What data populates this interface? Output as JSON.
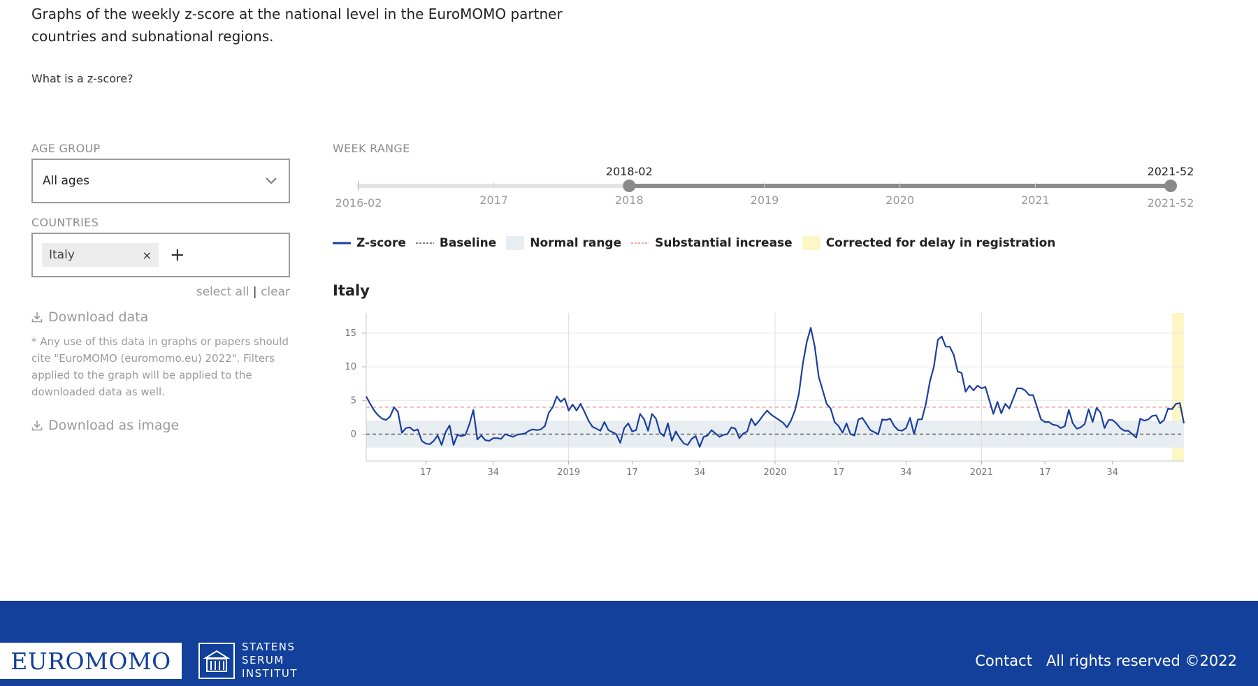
{
  "intro": {
    "text": "Graphs of the weekly z-score at the national level in the EuroMOMO partner countries and subnational regions.",
    "whatis": "What is a z-score?"
  },
  "filters": {
    "age_label": "AGE GROUP",
    "age_value": "All ages",
    "countries_label": "COUNTRIES",
    "country_chip": "Italy",
    "chip_remove": "×",
    "add": "+",
    "select_all": "select all",
    "separator": "|",
    "clear": "clear",
    "download_data": "Download data",
    "cite": "* Any use of this data in graphs or papers should cite \"EuroMOMO (euromomo.eu) 2022\". Filters applied to the graph will be applied to the downloaded data as well.",
    "download_image": "Download as image"
  },
  "week_range": {
    "label": "WEEK RANGE",
    "min": "2016-02",
    "max": "2021-52",
    "ticks": [
      "2016-02",
      "2017",
      "2018",
      "2019",
      "2020",
      "2021",
      "2021-52"
    ],
    "selected_start": "2018-02",
    "selected_end": "2021-52"
  },
  "legend": {
    "zscore": "Z-score",
    "baseline": "Baseline",
    "normal": "Normal range",
    "substantial": "Substantial increase",
    "corrected": "Corrected for delay in registration"
  },
  "colors": {
    "zscore": "#1a3f9e",
    "baseline": "#555555",
    "normal": "#e8edf1",
    "substantial": "#f08a8a",
    "corrected": "#fdf7c6",
    "slider_track": "#e3e3e3",
    "slider_active": "#8a8a8a",
    "footer": "#12409a"
  },
  "chart_data": {
    "type": "line",
    "title": "Italy",
    "x_start": "2018-02",
    "x_end": "2021-52",
    "x_tick_labels": [
      "17",
      "34",
      "2019",
      "17",
      "34",
      "2020",
      "17",
      "34",
      "2021",
      "17",
      "34"
    ],
    "x_tick_weeks": [
      [
        2018,
        17
      ],
      [
        2018,
        34
      ],
      [
        2019,
        1
      ],
      [
        2019,
        17
      ],
      [
        2019,
        34
      ],
      [
        2020,
        1
      ],
      [
        2020,
        17
      ],
      [
        2020,
        34
      ],
      [
        2021,
        1
      ],
      [
        2021,
        17
      ],
      [
        2021,
        34
      ]
    ],
    "year_lines": [
      [
        2019,
        1
      ],
      [
        2020,
        1
      ],
      [
        2021,
        1
      ]
    ],
    "ylim": [
      -4,
      18
    ],
    "y_ticks": [
      0,
      5,
      10,
      15
    ],
    "baseline": 0,
    "normal_range": [
      -2,
      2
    ],
    "substantial_increase": 4,
    "corrected_from": [
      2021,
      49
    ],
    "series": [
      {
        "name": "Z-score",
        "values": [
          5.6,
          4.5,
          3.5,
          2.8,
          2.3,
          2.1,
          2.6,
          4.0,
          3.3,
          0.2,
          0.9,
          1.0,
          0.5,
          0.7,
          -1.0,
          -1.4,
          -1.5,
          -1.0,
          -0.2,
          -1.6,
          0.3,
          1.3,
          -1.6,
          -0.1,
          -0.3,
          -0.1,
          1.5,
          3.6,
          -0.8,
          -0.2,
          -0.9,
          -1.0,
          -0.6,
          -0.6,
          -0.7,
          0.0,
          -0.2,
          -0.4,
          -0.1,
          0.0,
          0.1,
          0.5,
          0.7,
          0.6,
          0.7,
          1.2,
          3.2,
          4.0,
          5.6,
          4.8,
          5.3,
          3.5,
          4.4,
          3.5,
          4.5,
          3.3,
          2.0,
          1.1,
          0.8,
          0.5,
          1.8,
          0.6,
          0.3,
          0.0,
          -1.3,
          0.9,
          1.6,
          0.4,
          0.6,
          3.0,
          2.2,
          0.5,
          3.0,
          2.3,
          0.2,
          -0.3,
          1.6,
          -1.0,
          0.4,
          -0.6,
          -1.4,
          -1.6,
          -0.7,
          -0.3,
          -1.9,
          -0.4,
          -0.2,
          0.6,
          0.1,
          -0.4,
          -0.1,
          0.0,
          1.0,
          0.8,
          -0.6,
          0.1,
          0.4,
          2.3,
          1.3,
          2.0,
          2.8,
          3.5,
          2.9,
          2.5,
          2.1,
          1.7,
          1.0,
          2.0,
          3.5,
          6.0,
          10.5,
          13.7,
          15.8,
          13.0,
          8.5,
          6.5,
          4.5,
          3.8,
          1.8,
          1.2,
          0.2,
          1.6,
          0.0,
          -0.2,
          2.2,
          2.4,
          1.5,
          0.6,
          0.3,
          0.0,
          2.2,
          2.1,
          2.3,
          1.2,
          0.6,
          0.5,
          0.9,
          2.4,
          0.0,
          2.2,
          2.2,
          4.5,
          7.8,
          10.0,
          14.0,
          14.5,
          13.0,
          13.0,
          11.8,
          9.3,
          9.1,
          6.3,
          7.2,
          6.5,
          7.2,
          6.8,
          7.0,
          5.0,
          3.0,
          4.8,
          3.1,
          4.5,
          3.8,
          5.3,
          6.8,
          6.8,
          6.5,
          5.8,
          5.8,
          4.0,
          2.2,
          1.8,
          1.8,
          1.4,
          1.3,
          0.9,
          1.2,
          3.6,
          1.6,
          0.8,
          1.0,
          1.5,
          3.7,
          1.8,
          3.9,
          3.2,
          0.9,
          2.1,
          2.1,
          1.6,
          0.9,
          0.5,
          0.5,
          0.0,
          -0.5,
          2.3,
          2.0,
          2.2,
          2.7,
          2.8,
          1.6,
          2.1,
          3.8,
          3.7,
          4.5,
          4.6,
          1.6
        ]
      }
    ]
  },
  "footer": {
    "logo": "EUROMOMO",
    "ssi_line1": "STATENS",
    "ssi_line2": "SERUM",
    "ssi_line3": "INSTITUT",
    "contact": "Contact",
    "rights": "All rights reserved ©2022"
  }
}
